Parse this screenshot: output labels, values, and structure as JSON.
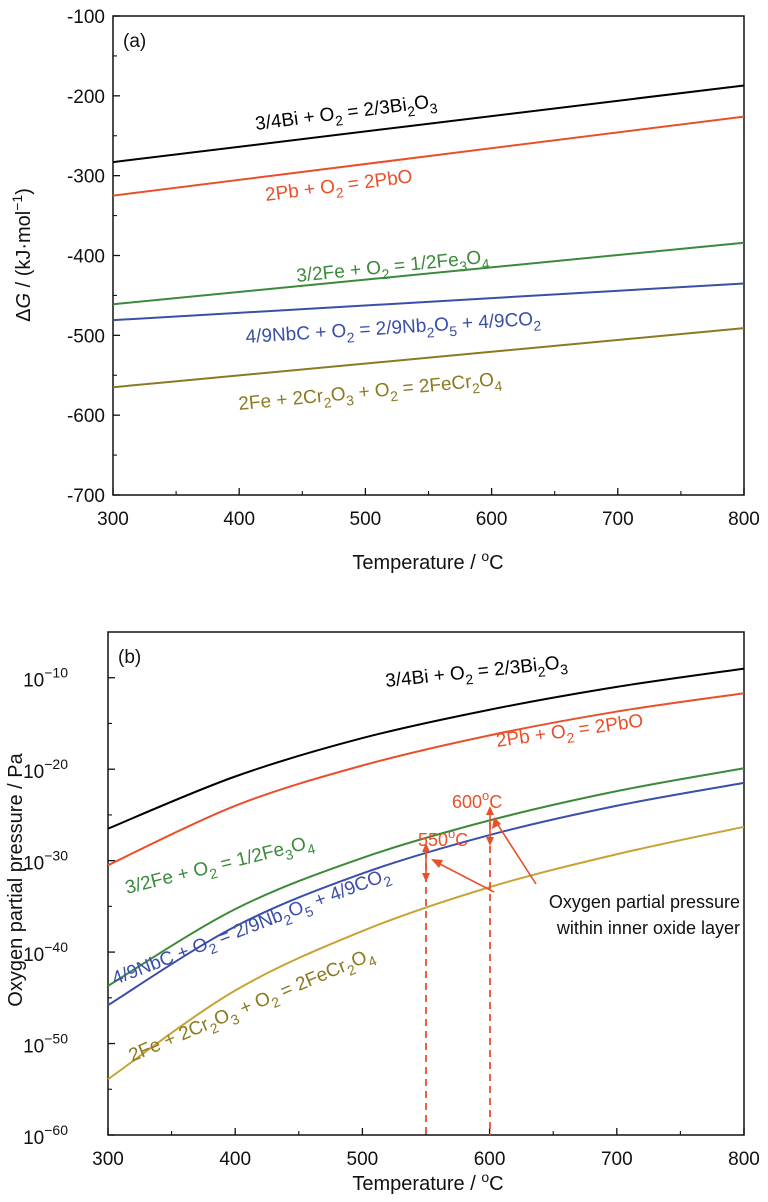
{
  "chart_data": [
    {
      "type": "line",
      "panel": "(a)",
      "xlabel": "Temperature / °C",
      "ylabel": "ΔG / (kJ·mol⁻¹)",
      "xlim": [
        300,
        800
      ],
      "ylim": [
        -700,
        -100
      ],
      "xticks": [
        "300",
        "400",
        "500",
        "600",
        "700",
        "800"
      ],
      "yticks": [
        "-700",
        "-600",
        "-500",
        "-400",
        "-300",
        "-200",
        "-100"
      ],
      "legend": "inline labels next to curves",
      "series": [
        {
          "name": "3/4Bi + O2 = 2/3Bi2O3",
          "color": "#000000",
          "x": [
            300,
            800
          ],
          "y": [
            -283,
            -187
          ]
        },
        {
          "name": "2Pb + O2 = 2PbO",
          "color": "#e8502a",
          "x": [
            300,
            800
          ],
          "y": [
            -325,
            -226
          ]
        },
        {
          "name": "3/2Fe + O2 = 1/2Fe3O4",
          "color": "#3b8a3b",
          "x": [
            300,
            800
          ],
          "y": [
            -461,
            -384
          ]
        },
        {
          "name": "4/9NbC + O2 = 2/9Nb2O5 + 4/9CO2",
          "color": "#3b4fa8",
          "x": [
            300,
            800
          ],
          "y": [
            -481,
            -435
          ]
        },
        {
          "name": "2Fe + 2Cr2O3 + O2 = 2FeCr2O4",
          "color": "#8a7a20",
          "x": [
            300,
            800
          ],
          "y": [
            -565,
            -491
          ]
        }
      ]
    },
    {
      "type": "line",
      "panel": "(b)",
      "xlabel": "Temperature / °C",
      "ylabel": "Oxygen partial pressure / Pa",
      "xlim": [
        300,
        800
      ],
      "ylim": [
        -60,
        -5
      ],
      "yscale": "log",
      "xticks": [
        "300",
        "400",
        "500",
        "600",
        "700",
        "800"
      ],
      "ytick_exponents": [
        "-10",
        "-20",
        "-30",
        "-40",
        "-50",
        "-60"
      ],
      "legend": "inline labels next to curves",
      "series": [
        {
          "name": "3/4Bi + O2 = 2/3Bi2O3",
          "color": "#000000",
          "x": [
            300,
            400,
            500,
            600,
            700,
            800
          ],
          "log10_y": [
            -26.5,
            -20.8,
            -16.6,
            -13.5,
            -11.0,
            -9.0
          ]
        },
        {
          "name": "2Pb + O2 = 2PbO",
          "color": "#e8502a",
          "x": [
            300,
            400,
            500,
            600,
            700,
            800
          ],
          "log10_y": [
            -30.5,
            -24.0,
            -19.6,
            -16.3,
            -13.7,
            -11.7
          ]
        },
        {
          "name": "3/2Fe + O2 = 1/2Fe3O4",
          "color": "#3b8a3b",
          "x": [
            300,
            400,
            500,
            600,
            700,
            800
          ],
          "log10_y": [
            -43.7,
            -35.3,
            -29.7,
            -25.6,
            -22.4,
            -19.9
          ]
        },
        {
          "name": "4/9NbC + O2 = 2/9Nb2O5 + 4/9CO2",
          "color": "#3b4fa8",
          "x": [
            300,
            400,
            500,
            600,
            700,
            800
          ],
          "log10_y": [
            -45.8,
            -37.2,
            -31.4,
            -27.2,
            -24.0,
            -21.5
          ]
        },
        {
          "name": "2Fe + 2Cr2O3 + O2 = 2FeCr2O4",
          "color": "#c8a232",
          "x": [
            300,
            400,
            500,
            600,
            700,
            800
          ],
          "log10_y": [
            -53.9,
            -44.2,
            -37.7,
            -32.9,
            -29.3,
            -26.3
          ]
        }
      ],
      "annotations": [
        {
          "label": "550",
          "unit": "°C",
          "x": 550
        },
        {
          "label": "600",
          "unit": "°C",
          "x": 600
        },
        {
          "label": "Oxygen partial pressure within inner oxide layer"
        }
      ]
    }
  ],
  "labels": {
    "panel_a": "(a)",
    "panel_b": "(b)",
    "temp_axis_prefix": "Temperature / ",
    "deg_sup": "o",
    "c": "C",
    "ylabel_a_delta": "Δ",
    "ylabel_a_G": "G",
    "ylabel_a_rest": " / (kJ·mol",
    "ylabel_a_sup": "−1",
    "ylabel_a_close": ")",
    "ylabel_b": "Oxygen partial pressure / Pa",
    "tick_base": "10",
    "temp_550": "550",
    "temp_600": "600",
    "anno_line1": "Oxygen partial pressure",
    "anno_line2": "within inner oxide layer"
  },
  "eq": {
    "bi": [
      "3/4Bi + O",
      "2",
      " = 2/3Bi",
      "2",
      "O",
      "3"
    ],
    "pb": [
      "2Pb + O",
      "2",
      " = 2PbO"
    ],
    "fe": [
      "3/2Fe + O",
      "2",
      " = 1/2Fe",
      "3",
      "O",
      "4"
    ],
    "nb": [
      "4/9NbC + O",
      "2",
      " = 2/9Nb",
      "2",
      "O",
      "5",
      " + 4/9CO",
      "2"
    ],
    "cr": [
      "2Fe + 2Cr",
      "2",
      "O",
      "3",
      " + O",
      "2",
      " = 2FeCr",
      "2",
      "O",
      "4"
    ]
  }
}
